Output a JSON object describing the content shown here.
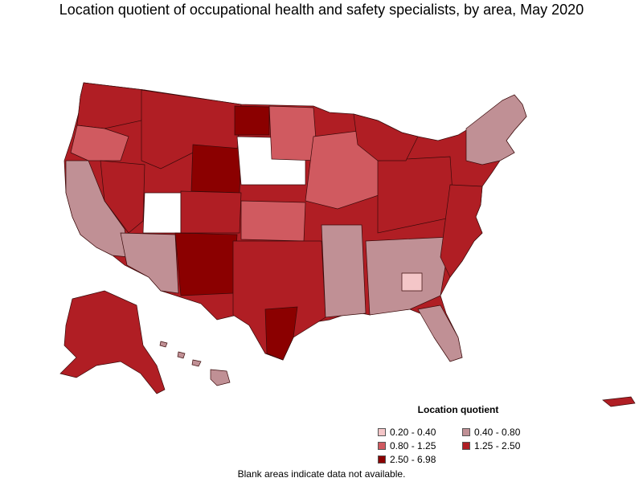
{
  "title": "Location quotient of occupational health and safety specialists, by area, May 2020",
  "legend": {
    "title": "Location quotient",
    "items": [
      {
        "label": "0.20 - 0.40",
        "color": "#f4c6c8"
      },
      {
        "label": "0.40 - 0.80",
        "color": "#c09095"
      },
      {
        "label": "0.80 - 1.25",
        "color": "#d05a60"
      },
      {
        "label": "1.25 - 2.50",
        "color": "#b01e24"
      },
      {
        "label": "2.50 - 6.98",
        "color": "#8b0000"
      }
    ]
  },
  "no_data_color": "#ffffff",
  "footnote": "Blank areas indicate data not available."
}
